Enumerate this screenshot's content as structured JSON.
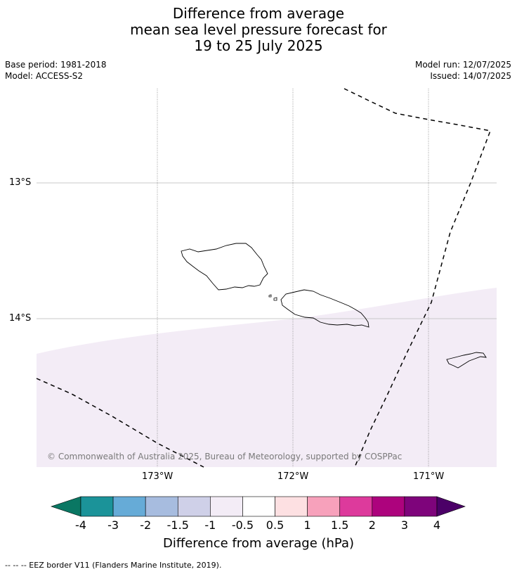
{
  "title": {
    "line1": "Difference from average",
    "line2": "mean sea level pressure forecast for",
    "line3": "19 to 25 July 2025"
  },
  "meta": {
    "base_period": "Base period: 1981-2018",
    "model": "Model: ACCESS-S2",
    "model_run": "Model run: 12/07/2025",
    "issued": "Issued: 14/07/2025"
  },
  "map": {
    "lat_labels": [
      "13°S",
      "14°S"
    ],
    "lon_labels": [
      "173°W",
      "172°W",
      "171°W"
    ],
    "copyright": "© Commonwealth of Australia 2025, Bureau of Meteorology, supported by COSPPac",
    "shading_color": "#f3ecf6",
    "eez_border_style": "dashed"
  },
  "colorbar": {
    "tick_labels": [
      "-4",
      "-3",
      "-2",
      "-1.5",
      "-1",
      "-0.5",
      "0.5",
      "1",
      "1.5",
      "2",
      "3",
      "4"
    ],
    "colors": [
      "#0a7763",
      "#1b9399",
      "#66abd7",
      "#a7bcdf",
      "#cfd0e8",
      "#f3ecf6",
      "#ffffff",
      "#fde0e2",
      "#f7a1bb",
      "#dd3a9c",
      "#ad037d",
      "#7e047b",
      "#4b0067"
    ],
    "title": "Difference from average (hPa)"
  },
  "footer": "--  --  -- EEZ border V11 (Flanders Marine Institute, 2019)."
}
